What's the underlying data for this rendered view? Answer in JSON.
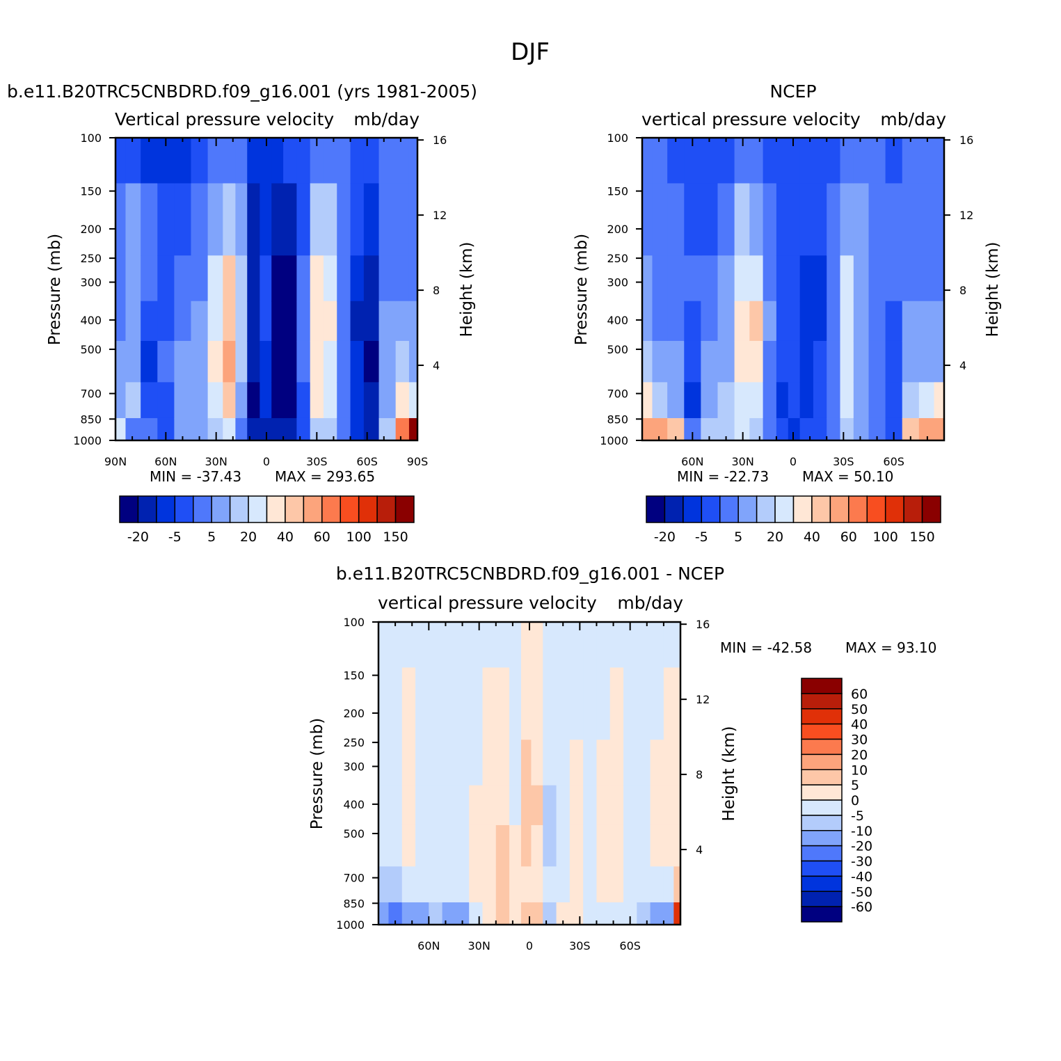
{
  "page_title": "DJF",
  "colors": {
    "model_levels": [
      "#000080",
      "#0022b0",
      "#0034dd",
      "#1f4ff5",
      "#4f78fb",
      "#80a4fb",
      "#b3ccfb",
      "#d7e8fd",
      "#ffe7d6",
      "#fdc7a8",
      "#fca47c",
      "#fc7a4e",
      "#f84e20",
      "#e03008",
      "#b81e0a",
      "#8a0000"
    ],
    "diff_levels": [
      "#000080",
      "#0022b0",
      "#0034dd",
      "#1f4ff5",
      "#4f78fb",
      "#80a4fb",
      "#b3ccfb",
      "#d7e8fd",
      "#ffe7d6",
      "#fdc7a8",
      "#fca47c",
      "#fc7a4e",
      "#f84e20",
      "#e03008",
      "#b81e0a",
      "#8a0000"
    ]
  },
  "chart_data": [
    {
      "type": "heatmap",
      "title": "b.e11.B20TRC5CNBDRD.f09_g16.001 (yrs 1981-2005)",
      "subtitle": "Vertical pressure velocity",
      "units": "mb/day",
      "xlabel": "",
      "ylabel": "Pressure (mb)",
      "y2label": "Height (km)",
      "x_ticks": [
        "90N",
        "60N",
        "30N",
        "0",
        "30S",
        "60S",
        "90S"
      ],
      "x_range": [
        90,
        -90
      ],
      "y_ticks": [
        "100",
        "150",
        "200",
        "250",
        "300",
        "400",
        "500",
        "700",
        "850",
        "1000"
      ],
      "y_range": [
        100,
        1000
      ],
      "y_log": true,
      "y2_ticks": [
        "4",
        "8",
        "12",
        "16"
      ],
      "min_label": "MIN = -37.43",
      "max_label": "MAX = 293.65",
      "colorbar_labels": [
        "-20",
        "-5",
        "5",
        "20",
        "40",
        "60",
        "100",
        "150"
      ],
      "colorbar_orientation": "horizontal",
      "columns": [
        {
          "lat": 88,
          "values": [
            -18,
            -14,
            -12,
            -12,
            -10,
            -8,
            2
          ]
        },
        {
          "lat": 80,
          "values": [
            -20,
            -10,
            -6,
            -7,
            -8,
            -4,
            -12
          ]
        },
        {
          "lat": 70,
          "values": [
            -22,
            -15,
            -13,
            -16,
            -22,
            -18,
            -15
          ]
        },
        {
          "lat": 60,
          "values": [
            -25,
            -20,
            -17,
            -17,
            -15,
            -18,
            -20
          ]
        },
        {
          "lat": 50,
          "values": [
            -25,
            -19,
            -15,
            -12,
            -10,
            -8,
            -6
          ]
        },
        {
          "lat": 40,
          "values": [
            -20,
            -15,
            -12,
            -10,
            -8,
            -7,
            -9
          ]
        },
        {
          "lat": 30,
          "values": [
            -15,
            -8,
            0,
            4,
            5,
            2,
            -2
          ]
        },
        {
          "lat": 22,
          "values": [
            -12,
            -3,
            10,
            18,
            20,
            12,
            2
          ]
        },
        {
          "lat": 15,
          "values": [
            -15,
            -9,
            -4,
            -3,
            -5,
            -8,
            -12
          ]
        },
        {
          "lat": 8,
          "values": [
            -22,
            -28,
            -26,
            -28,
            -30,
            -34,
            -30
          ]
        },
        {
          "lat": 0,
          "values": [
            -22,
            -22,
            -18,
            -17,
            -22,
            -24,
            -27
          ]
        },
        {
          "lat": -6,
          "values": [
            -22,
            -30,
            -33,
            -35,
            -35,
            -36,
            -30
          ]
        },
        {
          "lat": -14,
          "values": [
            -20,
            -30,
            -36,
            -37,
            -35,
            -32,
            -28
          ]
        },
        {
          "lat": -22,
          "values": [
            -17,
            -18,
            -15,
            -14,
            -15,
            -16,
            -16
          ]
        },
        {
          "lat": -30,
          "values": [
            -15,
            -5,
            5,
            8,
            8,
            6,
            -2
          ]
        },
        {
          "lat": -38,
          "values": [
            -14,
            -5,
            2,
            5,
            4,
            0,
            -4
          ]
        },
        {
          "lat": -46,
          "values": [
            -14,
            -13,
            -12,
            -15,
            -15,
            -14,
            -14
          ]
        },
        {
          "lat": -54,
          "values": [
            -16,
            -18,
            -22,
            -26,
            -25,
            -24,
            -22
          ]
        },
        {
          "lat": -62,
          "values": [
            -16,
            -22,
            -26,
            -30,
            -32,
            -30,
            -28
          ]
        },
        {
          "lat": -72,
          "values": [
            -14,
            -13,
            -12,
            -10,
            -10,
            -8,
            -4
          ]
        },
        {
          "lat": -82,
          "values": [
            -15,
            -14,
            -12,
            -10,
            -5,
            5,
            45
          ]
        },
        {
          "lat": -88,
          "values": [
            -15,
            -14,
            -12,
            -10,
            -8,
            2,
            150
          ]
        }
      ],
      "levels_mb": [
        100,
        200,
        300,
        400,
        550,
        750,
        950
      ]
    },
    {
      "type": "heatmap",
      "title": "NCEP",
      "subtitle": "vertical pressure velocity",
      "units": "mb/day",
      "xlabel": "",
      "ylabel": "Pressure (mb)",
      "y2label": "Height (km)",
      "x_ticks": [
        "60N",
        "30N",
        "0",
        "30S",
        "60S"
      ],
      "x_range": [
        90,
        -90
      ],
      "y_ticks": [
        "100",
        "150",
        "200",
        "250",
        "300",
        "400",
        "500",
        "700",
        "850",
        "1000"
      ],
      "y_range": [
        100,
        1000
      ],
      "y_log": true,
      "y2_ticks": [
        "4",
        "8",
        "12",
        "16"
      ],
      "min_label": "MIN = -22.73",
      "max_label": "MAX = 50.10",
      "colorbar_labels": [
        "-20",
        "-5",
        "5",
        "20",
        "40",
        "60",
        "100",
        "150"
      ],
      "colorbar_orientation": "horizontal",
      "columns": [
        {
          "lat": 88,
          "values": [
            -12,
            -12,
            -10,
            -8,
            -5,
            5,
            30
          ]
        },
        {
          "lat": 80,
          "values": [
            -14,
            -13,
            -12,
            -12,
            -10,
            -2,
            22
          ]
        },
        {
          "lat": 70,
          "values": [
            -16,
            -14,
            -13,
            -12,
            -10,
            -6,
            10
          ]
        },
        {
          "lat": 60,
          "values": [
            -18,
            -16,
            -15,
            -17,
            -20,
            -22,
            -14
          ]
        },
        {
          "lat": 50,
          "values": [
            -18,
            -16,
            -14,
            -12,
            -10,
            -8,
            -5
          ]
        },
        {
          "lat": 40,
          "values": [
            -17,
            -13,
            -10,
            -8,
            -6,
            -5,
            -4
          ]
        },
        {
          "lat": 30,
          "values": [
            -14,
            -5,
            0,
            5,
            6,
            3,
            0
          ]
        },
        {
          "lat": 22,
          "values": [
            -14,
            -6,
            2,
            10,
            8,
            2,
            -2
          ]
        },
        {
          "lat": 14,
          "values": [
            -16,
            -14,
            -12,
            -10,
            -12,
            -14,
            -13
          ]
        },
        {
          "lat": 6,
          "values": [
            -17,
            -16,
            -16,
            -18,
            -20,
            -21,
            -20
          ]
        },
        {
          "lat": 0,
          "values": [
            -16,
            -17,
            -18,
            -19,
            -20,
            -20,
            -21
          ]
        },
        {
          "lat": -8,
          "values": [
            -18,
            -20,
            -22,
            -22,
            -21,
            -22,
            -20
          ]
        },
        {
          "lat": -16,
          "values": [
            -17,
            -20,
            -22,
            -22,
            -20,
            -20,
            -18
          ]
        },
        {
          "lat": -24,
          "values": [
            -16,
            -14,
            -13,
            -12,
            -12,
            -14,
            -14
          ]
        },
        {
          "lat": -32,
          "values": [
            -14,
            -6,
            0,
            2,
            2,
            0,
            -4
          ]
        },
        {
          "lat": -40,
          "values": [
            -14,
            -10,
            -8,
            -7,
            -8,
            -10,
            -10
          ]
        },
        {
          "lat": -50,
          "values": [
            -15,
            -14,
            -13,
            -14,
            -15,
            -14,
            -13
          ]
        },
        {
          "lat": -60,
          "values": [
            -16,
            -15,
            -15,
            -18,
            -20,
            -20,
            -18
          ]
        },
        {
          "lat": -70,
          "values": [
            -14,
            -13,
            -12,
            -10,
            -8,
            -4,
            10
          ]
        },
        {
          "lat": -80,
          "values": [
            -15,
            -13,
            -12,
            -10,
            -6,
            2,
            22
          ]
        },
        {
          "lat": -88,
          "values": [
            -15,
            -14,
            -12,
            -10,
            -6,
            5,
            35
          ]
        }
      ],
      "levels_mb": [
        100,
        200,
        300,
        400,
        550,
        750,
        950
      ]
    },
    {
      "type": "heatmap",
      "title": "b.e11.B20TRC5CNBDRD.f09_g16.001 - NCEP",
      "subtitle": "vertical pressure velocity",
      "units": "mb/day",
      "xlabel": "",
      "ylabel": "Pressure (mb)",
      "y2label": "Height (km)",
      "x_ticks": [
        "60N",
        "30N",
        "0",
        "30S",
        "60S"
      ],
      "x_range": [
        90,
        -90
      ],
      "y_ticks": [
        "100",
        "150",
        "200",
        "250",
        "300",
        "400",
        "500",
        "700",
        "850",
        "1000"
      ],
      "y_range": [
        100,
        1000
      ],
      "y_log": true,
      "y2_ticks": [
        "4",
        "8",
        "12",
        "16"
      ],
      "min_label": "MIN = -42.58",
      "max_label": "MAX = 93.10",
      "colorbar_labels": [
        "60",
        "50",
        "40",
        "30",
        "20",
        "10",
        "5",
        "0",
        "-5",
        "-10",
        "-20",
        "-30",
        "-40",
        "-50",
        "-60"
      ],
      "colorbar_orientation": "vertical",
      "columns": [
        {
          "lat": 88,
          "values": [
            -2,
            -2,
            -2,
            -2,
            -2,
            -6,
            -18
          ]
        },
        {
          "lat": 80,
          "values": [
            -2,
            -2,
            -2,
            -2,
            -2,
            -8,
            -25
          ]
        },
        {
          "lat": 72,
          "values": [
            -2,
            1,
            2,
            2,
            1,
            -2,
            -20
          ]
        },
        {
          "lat": 64,
          "values": [
            -2,
            -2,
            -1,
            -2,
            -2,
            -3,
            -12
          ]
        },
        {
          "lat": 56,
          "values": [
            -2,
            -2,
            -2,
            -2,
            -2,
            -4,
            -10
          ]
        },
        {
          "lat": 48,
          "values": [
            -2,
            -2,
            -2,
            -2,
            -2,
            -5,
            -18
          ]
        },
        {
          "lat": 40,
          "values": [
            -2,
            -2,
            -2,
            -2,
            -2,
            -3,
            -15
          ]
        },
        {
          "lat": 32,
          "values": [
            -2,
            -1,
            -1,
            1,
            1,
            1,
            -2
          ]
        },
        {
          "lat": 24,
          "values": [
            -2,
            2,
            3,
            3,
            3,
            2,
            3
          ]
        },
        {
          "lat": 16,
          "values": [
            -2,
            2,
            3,
            4,
            5,
            5,
            6
          ]
        },
        {
          "lat": 8,
          "values": [
            -2,
            -1,
            -2,
            -1,
            1,
            2,
            3
          ]
        },
        {
          "lat": 2,
          "values": [
            1,
            3,
            6,
            8,
            6,
            3,
            8
          ]
        },
        {
          "lat": -4,
          "values": [
            3,
            2,
            4,
            5,
            3,
            2,
            6
          ]
        },
        {
          "lat": -12,
          "values": [
            -2,
            -2,
            -4,
            -7,
            -8,
            -4,
            -6
          ]
        },
        {
          "lat": -20,
          "values": [
            -2,
            -2,
            -3,
            -4,
            -4,
            -3,
            1
          ]
        },
        {
          "lat": -28,
          "values": [
            -2,
            -1,
            1,
            2,
            2,
            1,
            1
          ]
        },
        {
          "lat": -36,
          "values": [
            -2,
            -2,
            -2,
            -2,
            -2,
            -2,
            -2
          ]
        },
        {
          "lat": -44,
          "values": [
            -2,
            -1,
            2,
            3,
            3,
            1,
            -1
          ]
        },
        {
          "lat": -52,
          "values": [
            -2,
            2,
            4,
            4,
            3,
            1,
            -1
          ]
        },
        {
          "lat": -60,
          "values": [
            -2,
            -2,
            -2,
            -2,
            -2,
            -2,
            -2
          ]
        },
        {
          "lat": -68,
          "values": [
            -2,
            -2,
            -2,
            -2,
            -2,
            -3,
            -6
          ]
        },
        {
          "lat": -76,
          "values": [
            -2,
            -1,
            1,
            2,
            1,
            -5,
            -12
          ]
        },
        {
          "lat": -84,
          "values": [
            -2,
            1,
            3,
            3,
            3,
            -4,
            -15
          ]
        },
        {
          "lat": -88,
          "values": [
            -2,
            2,
            3,
            3,
            3,
            5,
            40
          ]
        }
      ],
      "levels_mb": [
        100,
        200,
        300,
        400,
        550,
        750,
        950
      ]
    }
  ]
}
